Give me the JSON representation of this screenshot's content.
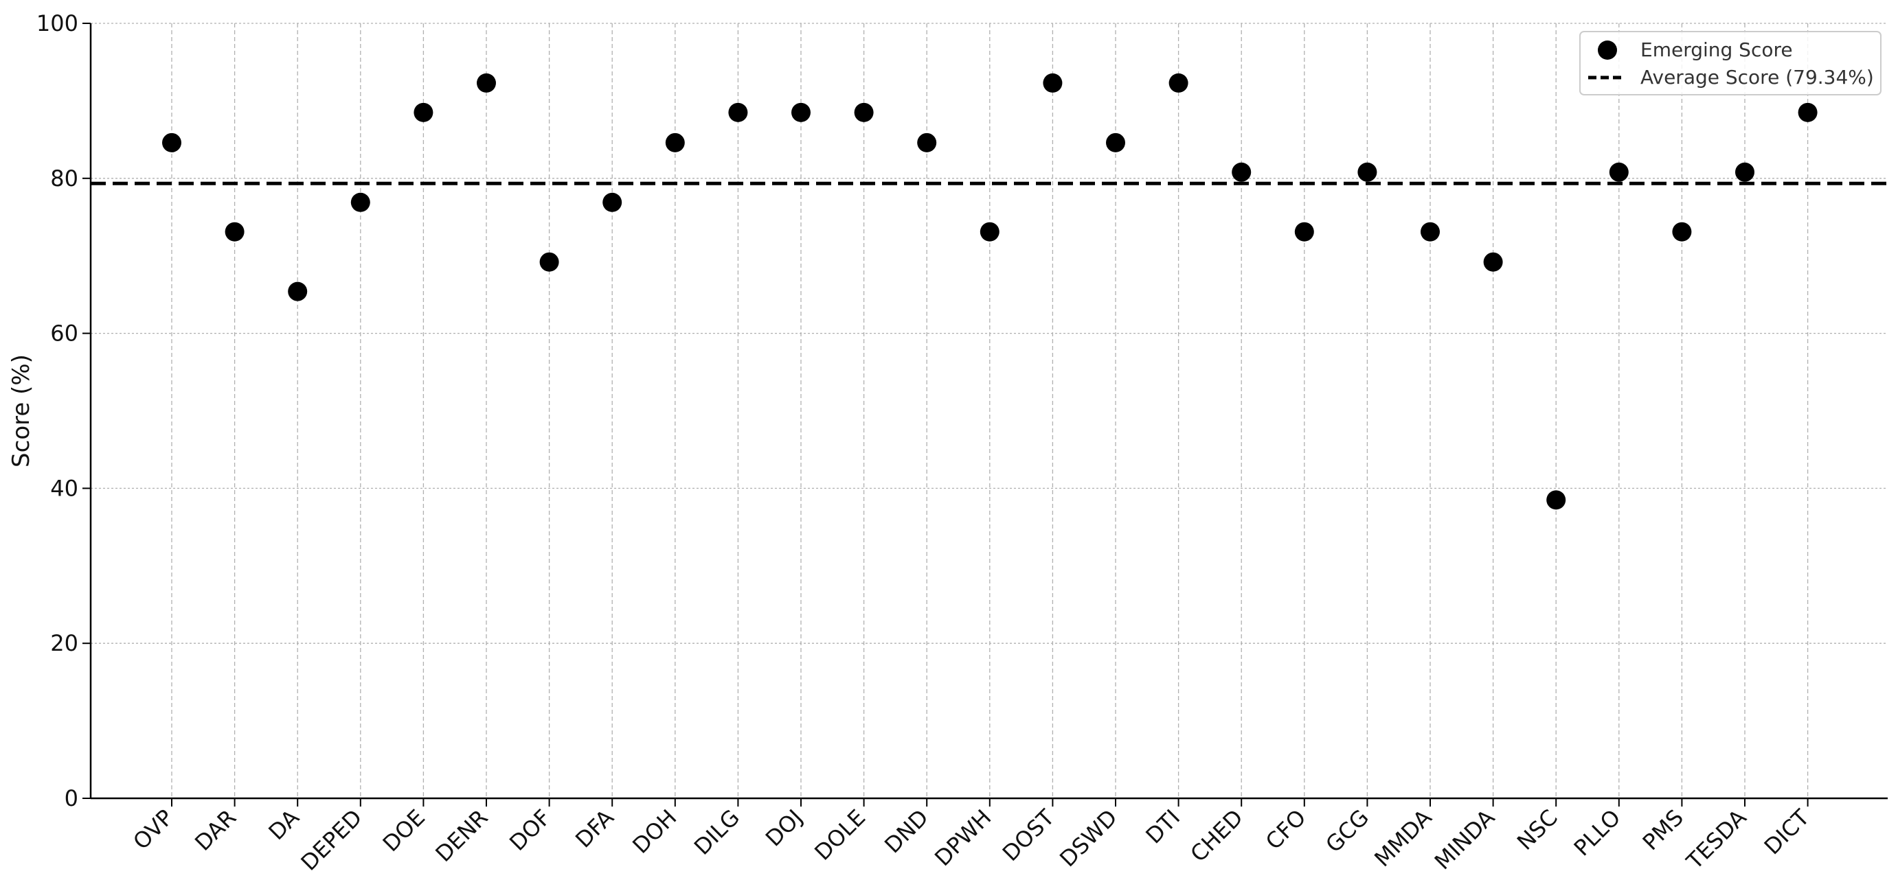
{
  "chart_data": {
    "type": "scatter",
    "title": "",
    "xlabel": "",
    "ylabel": "Score (%)",
    "ylim": [
      0,
      100
    ],
    "yticks": [
      0,
      20,
      40,
      60,
      80,
      100
    ],
    "grid": true,
    "legend_position": "top-right",
    "colors": {
      "points": "#000000",
      "average_line": "#000000",
      "grid": "#b0b0b0"
    },
    "categories": [
      "OVP",
      "DAR",
      "DA",
      "DEPED",
      "DOE",
      "DENR",
      "DOF",
      "DFA",
      "DOH",
      "DILG",
      "DOJ",
      "DOLE",
      "DND",
      "DPWH",
      "DOST",
      "DSWD",
      "DTI",
      "CHED",
      "CFO",
      "GCG",
      "MMDA",
      "MINDA",
      "NSC",
      "PLLO",
      "PMS",
      "TESDA",
      "DICT"
    ],
    "series": [
      {
        "name": "Emerging Score",
        "values": [
          84.6,
          73.1,
          65.4,
          76.9,
          88.5,
          92.3,
          69.2,
          76.9,
          84.6,
          88.5,
          88.5,
          88.5,
          84.6,
          73.1,
          92.3,
          84.6,
          92.3,
          80.8,
          73.1,
          80.8,
          73.1,
          69.2,
          38.5,
          80.8,
          73.1,
          80.8,
          88.5
        ]
      }
    ],
    "reference_line": {
      "name": "Average Score (79.34%)",
      "value": 79.34,
      "style": "dashed"
    }
  }
}
